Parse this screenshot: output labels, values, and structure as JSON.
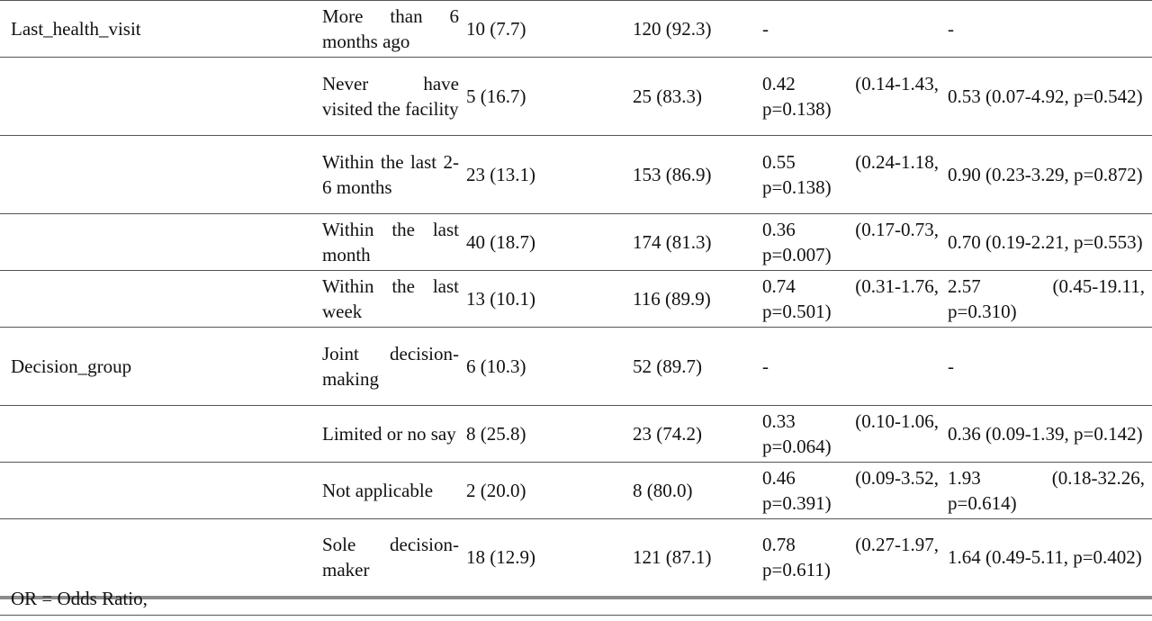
{
  "rows": [
    {
      "variable": "Last_health_visit",
      "category": "More than 6 months ago",
      "col1": "10 (7.7)",
      "col2": "120 (92.3)",
      "or": "-",
      "aor": "-"
    },
    {
      "variable": "",
      "category": "Never have visited the facility",
      "col1": "5 (16.7)",
      "col2": "25 (83.3)",
      "or": "0.42 (0.14-1.43, p=0.138)",
      "aor": "0.53 (0.07-4.92, p=0.542)"
    },
    {
      "variable": "",
      "category": "Within the last 2-6 months",
      "col1": "23 (13.1)",
      "col2": "153 (86.9)",
      "or": "0.55 (0.24-1.18, p=0.138)",
      "aor": "0.90 (0.23-3.29, p=0.872)"
    },
    {
      "variable": "",
      "category": "Within the last month",
      "col1": "40 (18.7)",
      "col2": "174 (81.3)",
      "or": "0.36 (0.17-0.73, p=0.007)",
      "aor": "0.70 (0.19-2.21, p=0.553)"
    },
    {
      "variable": "",
      "category": "Within the last week",
      "col1": "13 (10.1)",
      "col2": "116 (89.9)",
      "or": "0.74 (0.31-1.76, p=0.501)",
      "aor": "2.57 (0.45-19.11, p=0.310)"
    },
    {
      "variable": "Decision_group",
      "category": "Joint decision-making",
      "col1": "6 (10.3)",
      "col2": "52 (89.7)",
      "or": "-",
      "aor": "-"
    },
    {
      "variable": "",
      "category": "Limited or no say",
      "col1": "8 (25.8)",
      "col2": "23 (74.2)",
      "or": "0.33 (0.10-1.06, p=0.064)",
      "aor": "0.36 (0.09-1.39, p=0.142)"
    },
    {
      "variable": "",
      "category": "Not applicable",
      "col1": "2 (20.0)",
      "col2": "8 (80.0)",
      "or": "0.46 (0.09-3.52, p=0.391)",
      "aor": "1.93 (0.18-32.26, p=0.614)"
    },
    {
      "variable": "",
      "category": "Sole decision-maker",
      "col1": "18 (12.9)",
      "col2": "121 (87.1)",
      "or": "0.78 (0.27-1.97, p=0.611)",
      "aor": "1.64 (0.49-5.11, p=0.402)"
    }
  ],
  "footnote": "OR = Odds Ratio,"
}
